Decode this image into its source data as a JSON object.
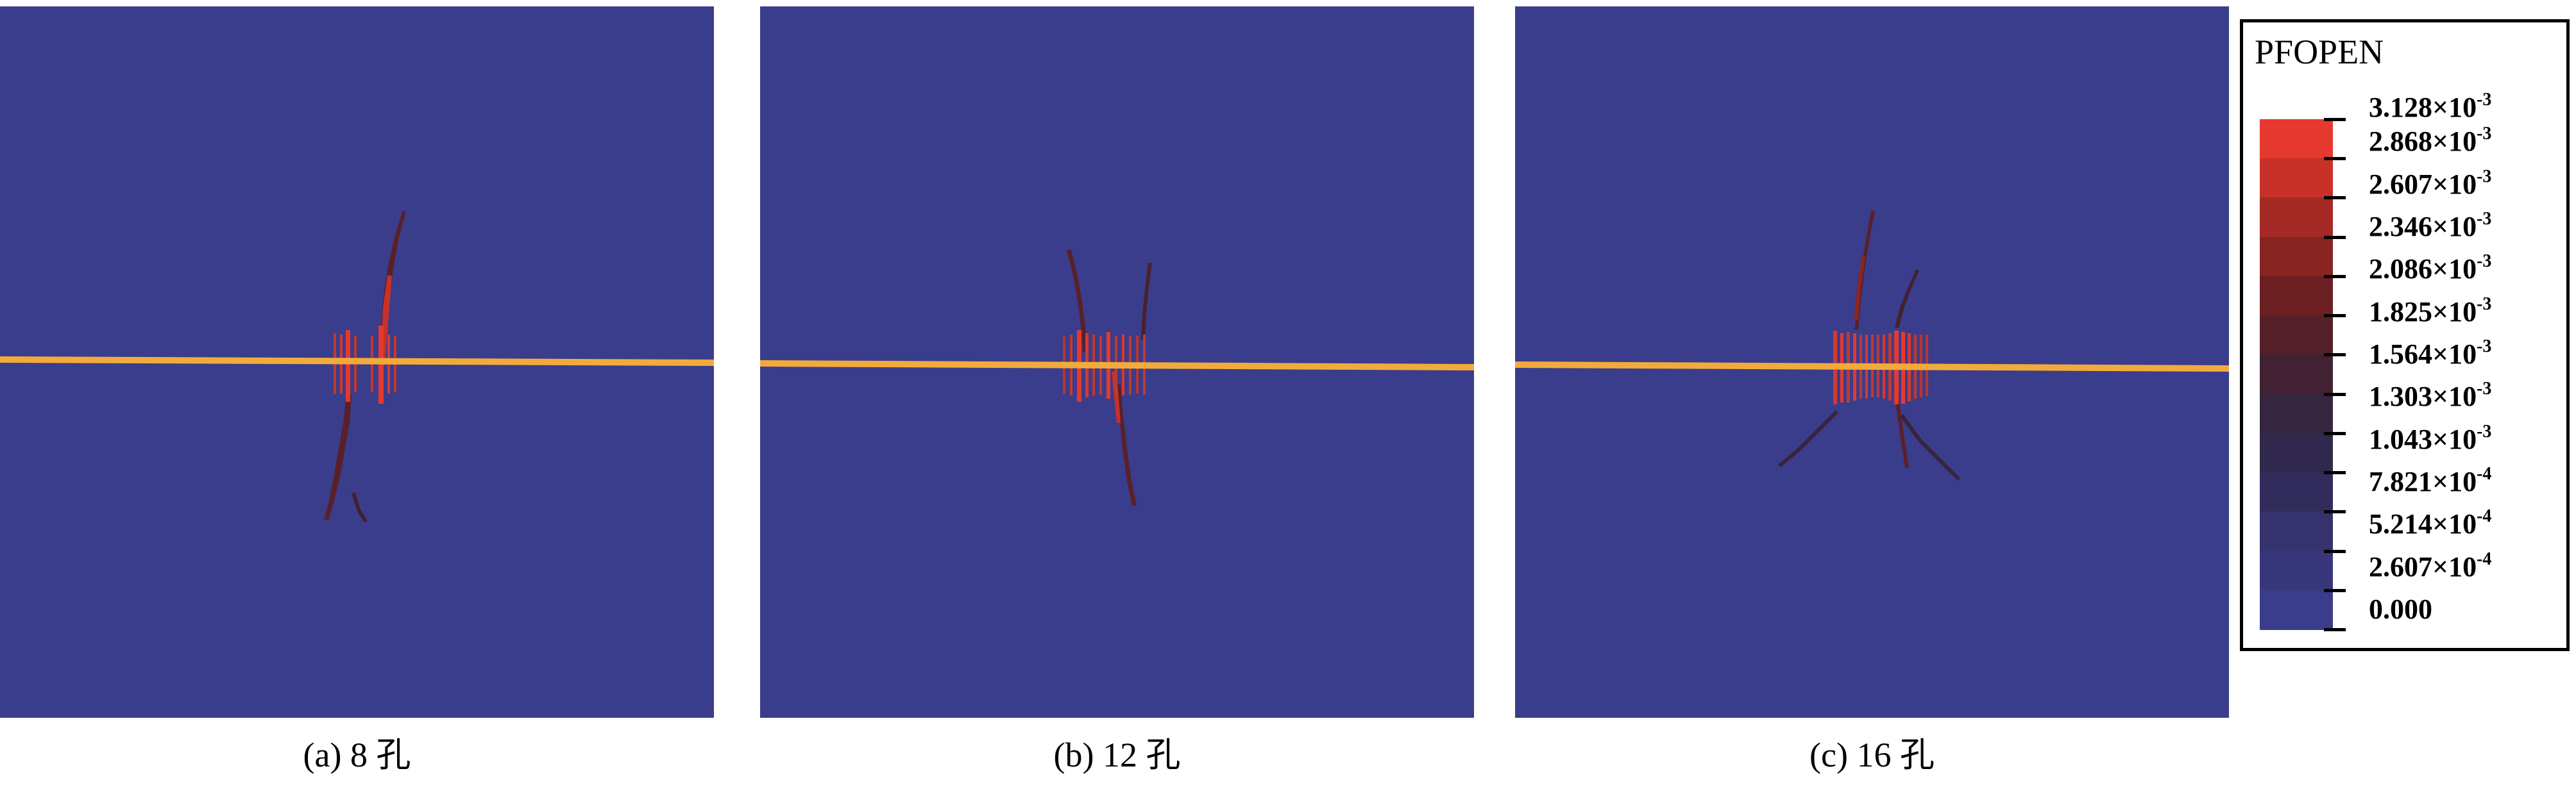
{
  "panels": [
    {
      "id": "a",
      "caption": "(a) 8 孔",
      "holes": 8
    },
    {
      "id": "b",
      "caption": "(b)  12 孔",
      "holes": 12
    },
    {
      "id": "c",
      "caption": "(c) 16 孔",
      "holes": 16
    }
  ],
  "legend": {
    "title": "PFOPEN",
    "labels": [
      {
        "mantissa": "3.128×10",
        "exp": "-3"
      },
      {
        "mantissa": "2.868×10",
        "exp": "-3"
      },
      {
        "mantissa": "2.607×10",
        "exp": "-3"
      },
      {
        "mantissa": "2.346×10",
        "exp": "-3"
      },
      {
        "mantissa": "2.086×10",
        "exp": "-3"
      },
      {
        "mantissa": "1.825×10",
        "exp": "-3"
      },
      {
        "mantissa": "1.564×10",
        "exp": "-3"
      },
      {
        "mantissa": "1.303×10",
        "exp": "-3"
      },
      {
        "mantissa": "1.043×10",
        "exp": "-3"
      },
      {
        "mantissa": "7.821×10",
        "exp": "-4"
      },
      {
        "mantissa": "5.214×10",
        "exp": "-4"
      },
      {
        "mantissa": "2.607×10",
        "exp": "-4"
      },
      {
        "mantissa": "0.000",
        "exp": ""
      }
    ],
    "colors": [
      "#e5392f",
      "#c73128",
      "#a52a26",
      "#882422",
      "#6c1f22",
      "#552029",
      "#422232",
      "#36253f",
      "#31284d",
      "#322c5c",
      "#35326d",
      "#38377c",
      "#3a3d8c"
    ]
  },
  "colors": {
    "background": "#3a3d8c",
    "well": "#f2ab3b",
    "fracture_high": "#e5392f",
    "fracture_dark": "#5a2029"
  }
}
